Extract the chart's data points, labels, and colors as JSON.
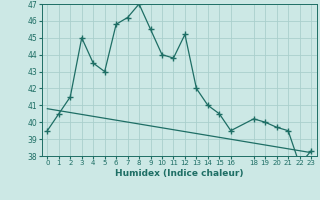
{
  "xlabel": "Humidex (Indice chaleur)",
  "bg_color": "#cce8e5",
  "grid_color": "#aacfcc",
  "line_color": "#1e6e65",
  "x_data": [
    0,
    1,
    2,
    3,
    4,
    5,
    6,
    7,
    8,
    9,
    10,
    11,
    12,
    13,
    14,
    15,
    16,
    18,
    19,
    20,
    21,
    22,
    23
  ],
  "y_data": [
    39.5,
    40.5,
    41.5,
    45.0,
    43.5,
    43.0,
    45.8,
    46.2,
    47.0,
    45.5,
    44.0,
    43.8,
    45.2,
    42.0,
    41.0,
    40.5,
    39.5,
    40.2,
    40.0,
    39.7,
    39.5,
    37.5,
    38.3
  ],
  "trend_x": [
    0,
    23
  ],
  "trend_y": [
    40.8,
    38.2
  ],
  "ylim": [
    38,
    47
  ],
  "yticks": [
    38,
    39,
    40,
    41,
    42,
    43,
    44,
    45,
    46,
    47
  ],
  "xticks": [
    0,
    1,
    2,
    3,
    4,
    5,
    6,
    7,
    8,
    9,
    10,
    11,
    12,
    13,
    14,
    15,
    16,
    18,
    19,
    20,
    21,
    22,
    23
  ],
  "xtick_labels": [
    "0",
    "1",
    "2",
    "3",
    "4",
    "5",
    "6",
    "7",
    "8",
    "9",
    "10",
    "11",
    "12",
    "13",
    "14",
    "15",
    "16",
    "18",
    "19",
    "20",
    "21",
    "22",
    "23"
  ]
}
